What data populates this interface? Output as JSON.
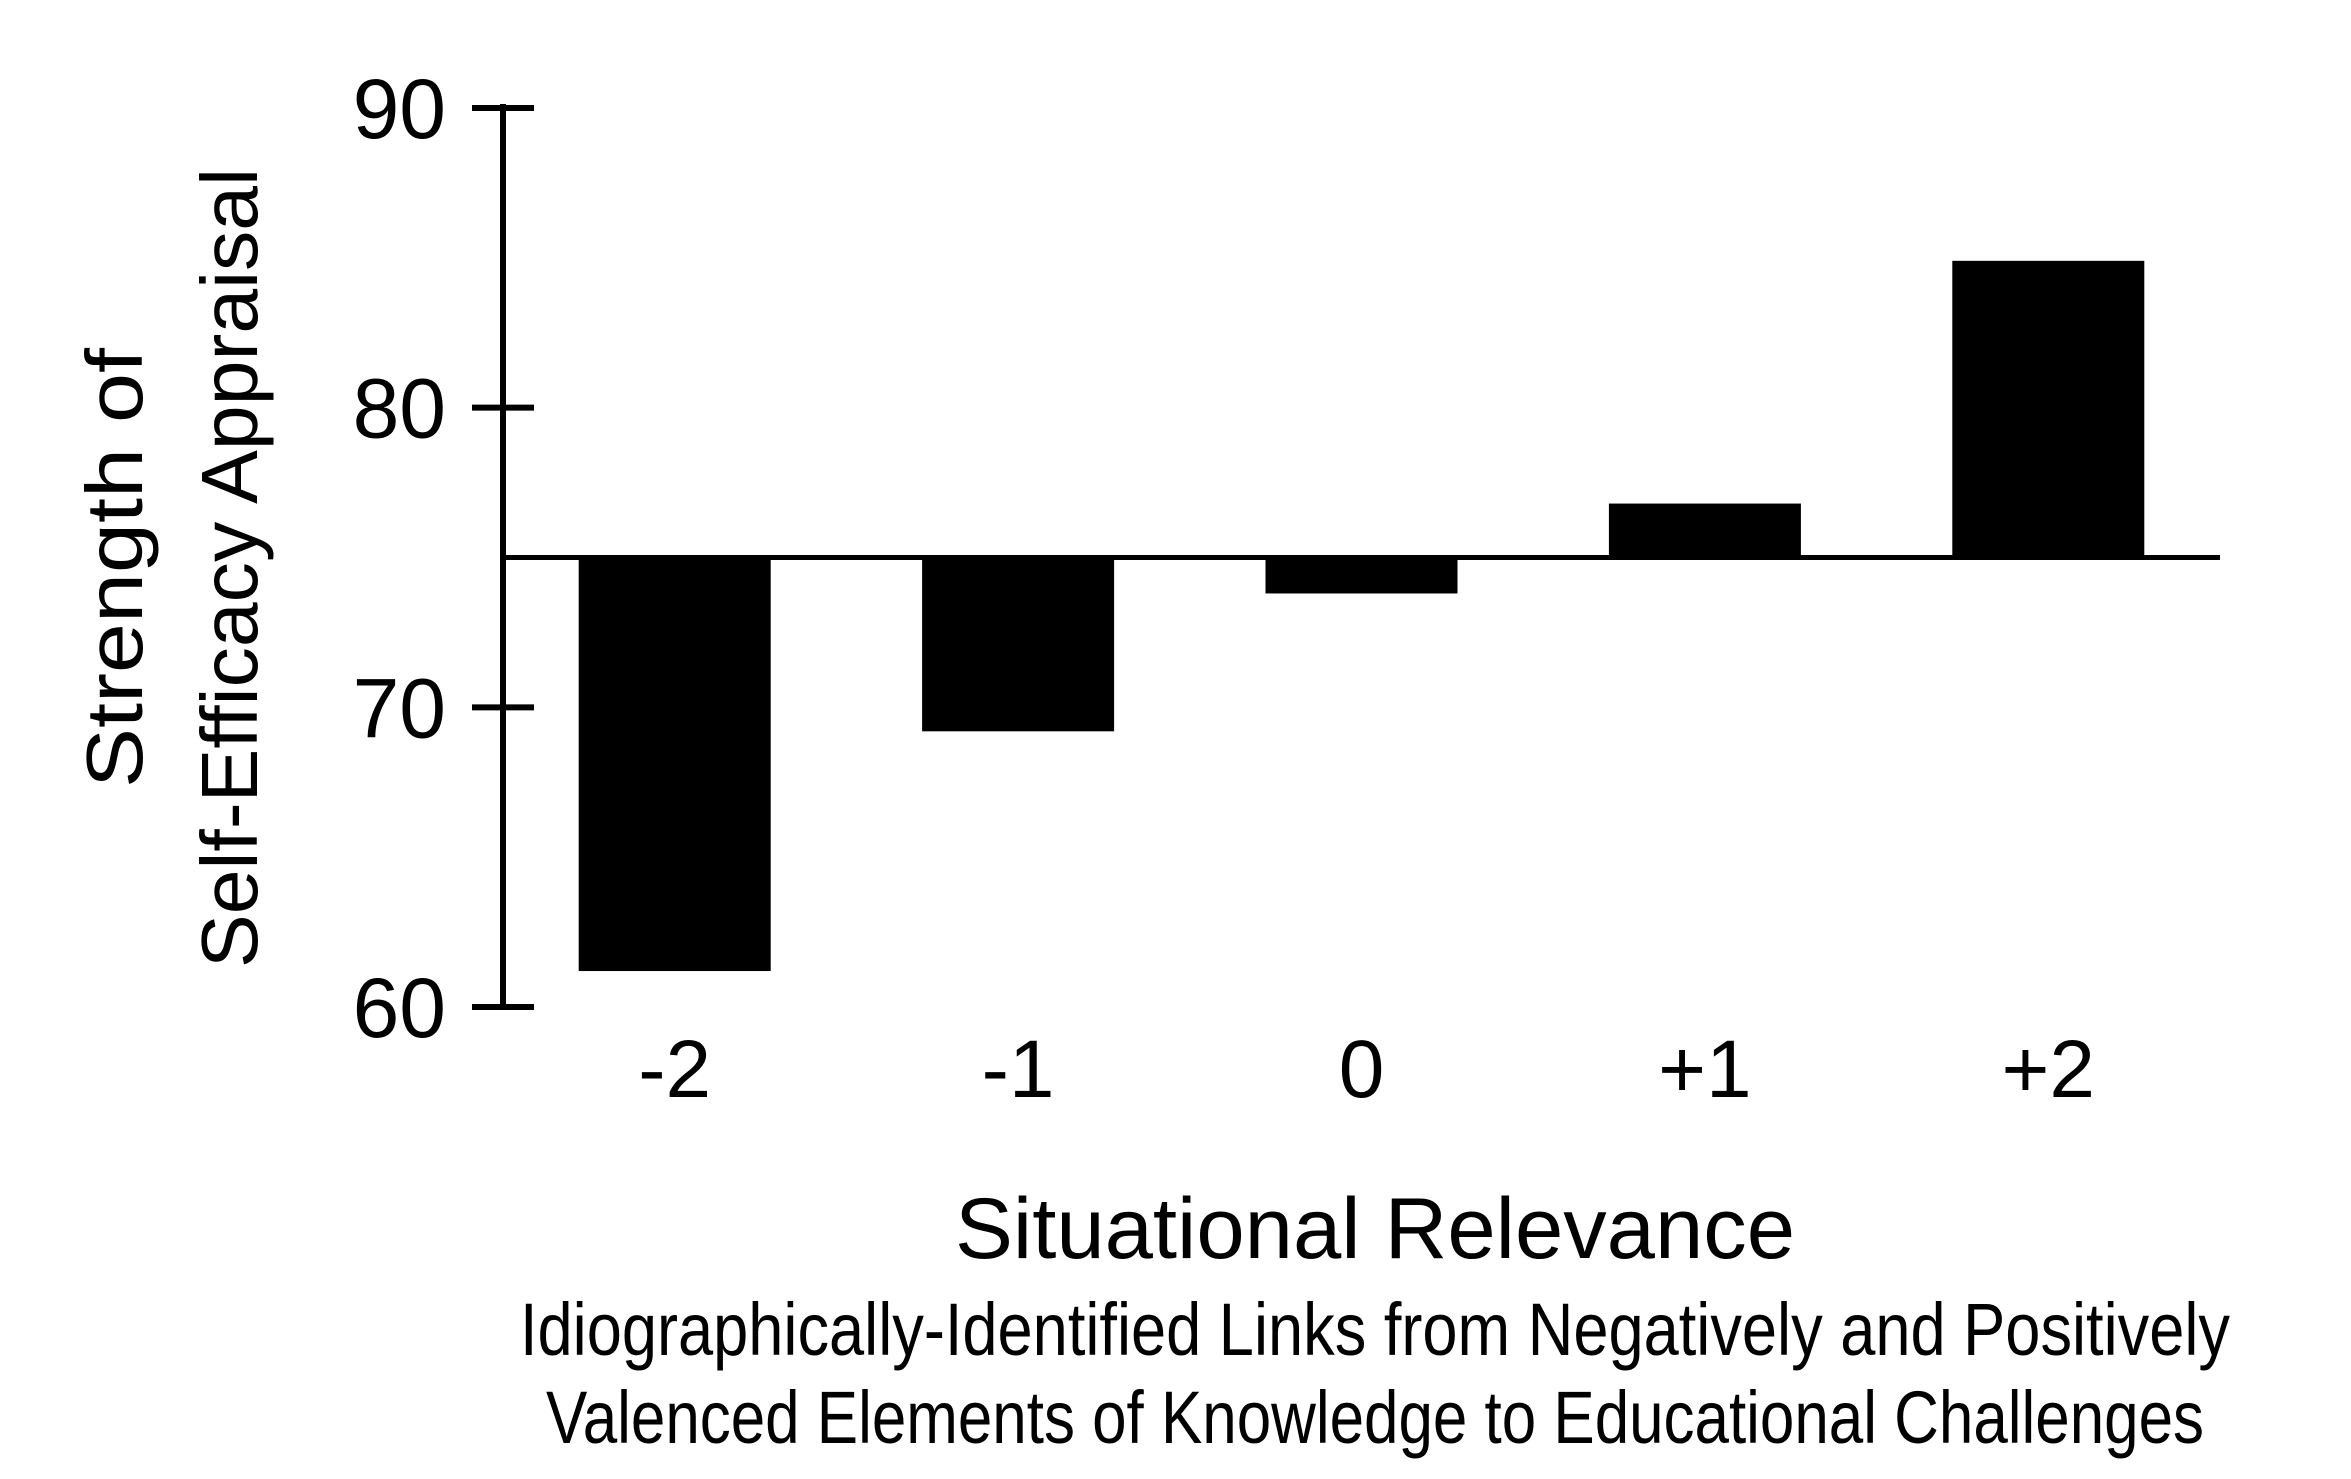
{
  "figure": {
    "background": "#ffffff",
    "ink_color": "#000000"
  },
  "chart_data": {
    "type": "bar",
    "categories": [
      "-2",
      "-1",
      "0",
      "+1",
      "+2"
    ],
    "values": [
      61.2,
      69.2,
      73.8,
      76.8,
      84.9
    ],
    "baseline": 75,
    "y_ticks": [
      60,
      70,
      80,
      90
    ],
    "ylim": [
      60,
      90
    ],
    "grid": false,
    "legend_position": "none",
    "bar_color": "#000000",
    "ylabel_lines": [
      "Strength of",
      "Self-Efficacy Appraisal"
    ],
    "xlabel": "Situational Relevance",
    "xlabel_subtitle_lines": [
      "Idiographically-Identified Links from Negatively and Positively",
      "Valenced Elements of Knowledge to Educational Challenges"
    ]
  }
}
